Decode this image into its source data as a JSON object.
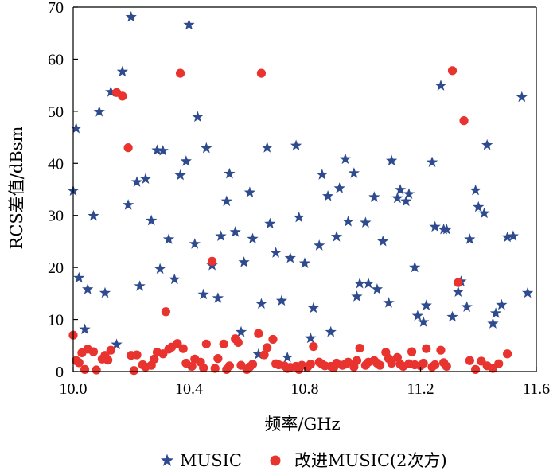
{
  "colors": {
    "music": "#2f4b8f",
    "improved": "#e8332e",
    "axis": "#000000"
  },
  "chart_data": {
    "type": "scatter",
    "xlabel": "频率/GHz",
    "ylabel": "RCS差值/dBsm",
    "xlim": [
      10.0,
      11.6
    ],
    "ylim": [
      0,
      70
    ],
    "xticks": [
      10.0,
      10.4,
      10.8,
      11.2,
      11.6
    ],
    "xtick_labels": [
      "10.0",
      "10.4",
      "10.8",
      "11.2",
      "11.6"
    ],
    "yticks": [
      0,
      10,
      20,
      30,
      40,
      50,
      60,
      70
    ],
    "ytick_labels": [
      "0",
      "10",
      "20",
      "30",
      "40",
      "50",
      "60",
      "70"
    ],
    "grid": false,
    "legend_position": "bottom",
    "series": [
      {
        "name": "MUSIC",
        "marker": "star",
        "color": "#2f4b8f",
        "points": [
          [
            10.0,
            34.7
          ],
          [
            10.01,
            46.7
          ],
          [
            10.02,
            18.0
          ],
          [
            10.04,
            8.1
          ],
          [
            10.05,
            15.8
          ],
          [
            10.07,
            29.9
          ],
          [
            10.09,
            49.9
          ],
          [
            10.11,
            15.1
          ],
          [
            10.13,
            53.7
          ],
          [
            10.15,
            5.2
          ],
          [
            10.17,
            57.6
          ],
          [
            10.19,
            32.0
          ],
          [
            10.2,
            68.1
          ],
          [
            10.22,
            36.4
          ],
          [
            10.23,
            16.4
          ],
          [
            10.25,
            37.0
          ],
          [
            10.27,
            29.0
          ],
          [
            10.29,
            42.5
          ],
          [
            10.3,
            19.7
          ],
          [
            10.31,
            42.4
          ],
          [
            10.33,
            25.4
          ],
          [
            10.35,
            17.7
          ],
          [
            10.37,
            37.7
          ],
          [
            10.39,
            40.4
          ],
          [
            10.4,
            66.6
          ],
          [
            10.42,
            24.5
          ],
          [
            10.43,
            48.9
          ],
          [
            10.45,
            14.8
          ],
          [
            10.46,
            42.9
          ],
          [
            10.48,
            20.4
          ],
          [
            10.5,
            14.1
          ],
          [
            10.51,
            26.0
          ],
          [
            10.53,
            32.7
          ],
          [
            10.54,
            38.0
          ],
          [
            10.56,
            26.8
          ],
          [
            10.58,
            7.6
          ],
          [
            10.59,
            21.0
          ],
          [
            10.61,
            34.4
          ],
          [
            10.62,
            25.5
          ],
          [
            10.64,
            3.3
          ],
          [
            10.65,
            13.0
          ],
          [
            10.67,
            43.0
          ],
          [
            10.68,
            28.4
          ],
          [
            10.7,
            22.8
          ],
          [
            10.72,
            13.6
          ],
          [
            10.74,
            2.7
          ],
          [
            10.75,
            21.8
          ],
          [
            10.77,
            43.4
          ],
          [
            10.78,
            29.6
          ],
          [
            10.8,
            20.8
          ],
          [
            10.82,
            6.4
          ],
          [
            10.83,
            12.2
          ],
          [
            10.85,
            24.2
          ],
          [
            10.86,
            37.8
          ],
          [
            10.88,
            33.7
          ],
          [
            10.89,
            7.6
          ],
          [
            10.91,
            25.9
          ],
          [
            10.92,
            35.2
          ],
          [
            10.94,
            40.8
          ],
          [
            10.95,
            28.8
          ],
          [
            10.97,
            38.1
          ],
          [
            10.98,
            14.4
          ],
          [
            10.99,
            16.9
          ],
          [
            11.01,
            28.6
          ],
          [
            11.02,
            16.9
          ],
          [
            11.04,
            33.5
          ],
          [
            11.05,
            15.8
          ],
          [
            11.07,
            25.0
          ],
          [
            11.09,
            13.2
          ],
          [
            11.1,
            40.5
          ],
          [
            11.12,
            33.3
          ],
          [
            11.13,
            34.9
          ],
          [
            11.15,
            32.7
          ],
          [
            11.16,
            34.1
          ],
          [
            11.18,
            20.0
          ],
          [
            11.19,
            10.7
          ],
          [
            11.21,
            9.5
          ],
          [
            11.22,
            12.7
          ],
          [
            11.24,
            40.2
          ],
          [
            11.25,
            27.8
          ],
          [
            11.27,
            54.9
          ],
          [
            11.28,
            27.3
          ],
          [
            11.29,
            27.3
          ],
          [
            11.31,
            10.5
          ],
          [
            11.33,
            15.3
          ],
          [
            11.34,
            17.3
          ],
          [
            11.36,
            12.4
          ],
          [
            11.37,
            25.4
          ],
          [
            11.39,
            34.8
          ],
          [
            11.4,
            31.6
          ],
          [
            11.42,
            30.4
          ],
          [
            11.43,
            43.5
          ],
          [
            11.45,
            9.2
          ],
          [
            11.46,
            11.2
          ],
          [
            11.48,
            12.8
          ],
          [
            11.5,
            25.8
          ],
          [
            11.52,
            26.0
          ],
          [
            11.55,
            52.7
          ],
          [
            11.57,
            15.1
          ]
        ]
      },
      {
        "name": "改进MUSIC(2次方)",
        "marker": "circle",
        "color": "#e8332e",
        "points": [
          [
            10.0,
            7.0
          ],
          [
            10.01,
            2.1
          ],
          [
            10.02,
            1.7
          ],
          [
            10.03,
            3.6
          ],
          [
            10.04,
            0.4
          ],
          [
            10.05,
            4.3
          ],
          [
            10.07,
            3.8
          ],
          [
            10.08,
            0.3
          ],
          [
            10.1,
            2.4
          ],
          [
            10.11,
            3.1
          ],
          [
            10.12,
            2.2
          ],
          [
            10.13,
            4.1
          ],
          [
            10.15,
            53.6
          ],
          [
            10.17,
            52.9
          ],
          [
            10.19,
            43.0
          ],
          [
            10.2,
            3.1
          ],
          [
            10.21,
            0.2
          ],
          [
            10.22,
            3.2
          ],
          [
            10.24,
            1.3
          ],
          [
            10.25,
            0.9
          ],
          [
            10.27,
            1.2
          ],
          [
            10.28,
            2.4
          ],
          [
            10.29,
            3.7
          ],
          [
            10.31,
            3.4
          ],
          [
            10.32,
            11.5
          ],
          [
            10.33,
            4.3
          ],
          [
            10.34,
            4.7
          ],
          [
            10.36,
            5.4
          ],
          [
            10.37,
            57.3
          ],
          [
            10.38,
            4.4
          ],
          [
            10.39,
            1.6
          ],
          [
            10.41,
            1.0
          ],
          [
            10.42,
            2.4
          ],
          [
            10.44,
            1.8
          ],
          [
            10.45,
            0.7
          ],
          [
            10.46,
            5.3
          ],
          [
            10.48,
            21.2
          ],
          [
            10.49,
            0.6
          ],
          [
            10.5,
            2.5
          ],
          [
            10.52,
            5.3
          ],
          [
            10.53,
            0.4
          ],
          [
            10.54,
            1.1
          ],
          [
            10.56,
            6.3
          ],
          [
            10.57,
            5.6
          ],
          [
            10.58,
            1.2
          ],
          [
            10.6,
            0.4
          ],
          [
            10.61,
            0.9
          ],
          [
            10.62,
            1.4
          ],
          [
            10.64,
            7.3
          ],
          [
            10.65,
            57.3
          ],
          [
            10.66,
            3.2
          ],
          [
            10.67,
            4.6
          ],
          [
            10.69,
            6.2
          ],
          [
            10.7,
            1.5
          ],
          [
            10.71,
            1.3
          ],
          [
            10.73,
            1.1
          ],
          [
            10.74,
            0.6
          ],
          [
            10.75,
            0.8
          ],
          [
            10.77,
            1.0
          ],
          [
            10.78,
            0.4
          ],
          [
            10.79,
            1.2
          ],
          [
            10.81,
            0.9
          ],
          [
            10.82,
            1.4
          ],
          [
            10.83,
            4.8
          ],
          [
            10.85,
            1.8
          ],
          [
            10.86,
            1.4
          ],
          [
            10.87,
            1.1
          ],
          [
            10.89,
            1.0
          ],
          [
            10.9,
            0.7
          ],
          [
            10.91,
            1.6
          ],
          [
            10.93,
            1.2
          ],
          [
            10.94,
            1.4
          ],
          [
            10.95,
            1.8
          ],
          [
            10.97,
            0.9
          ],
          [
            10.98,
            2.1
          ],
          [
            10.99,
            4.5
          ],
          [
            11.01,
            1.2
          ],
          [
            11.02,
            1.8
          ],
          [
            11.04,
            2.1
          ],
          [
            11.05,
            1.6
          ],
          [
            11.06,
            1.2
          ],
          [
            11.08,
            3.7
          ],
          [
            11.09,
            2.5
          ],
          [
            11.1,
            1.6
          ],
          [
            11.12,
            2.7
          ],
          [
            11.13,
            1.4
          ],
          [
            11.14,
            1.0
          ],
          [
            11.16,
            1.5
          ],
          [
            11.17,
            3.8
          ],
          [
            11.18,
            1.3
          ],
          [
            11.2,
            1.1
          ],
          [
            11.21,
            1.6
          ],
          [
            11.22,
            4.4
          ],
          [
            11.24,
            0.9
          ],
          [
            11.25,
            1.3
          ],
          [
            11.27,
            4.1
          ],
          [
            11.28,
            1.7
          ],
          [
            11.29,
            1.0
          ],
          [
            11.31,
            57.8
          ],
          [
            11.33,
            17.1
          ],
          [
            11.35,
            48.2
          ],
          [
            11.37,
            2.1
          ],
          [
            11.39,
            0.4
          ],
          [
            11.41,
            2.0
          ],
          [
            11.43,
            1.1
          ],
          [
            11.45,
            0.6
          ],
          [
            11.47,
            1.5
          ],
          [
            11.5,
            3.4
          ]
        ]
      }
    ]
  }
}
